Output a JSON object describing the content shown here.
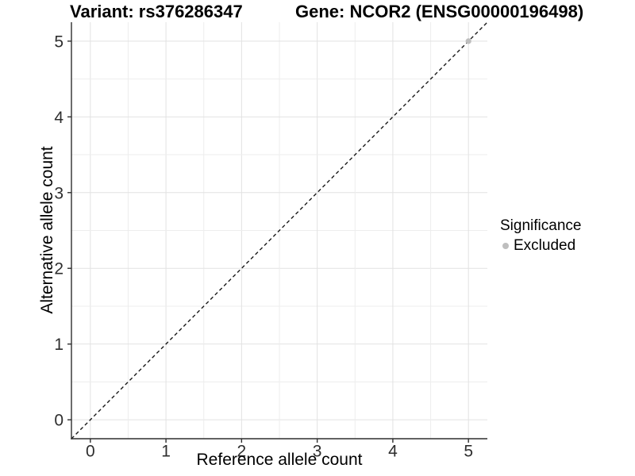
{
  "header": {
    "variant_title": "Variant: rs376286347",
    "gene_title": "Gene: NCOR2 (ENSG00000196498)"
  },
  "chart_data": {
    "type": "scatter",
    "xlabel": "Reference allele count",
    "ylabel": "Alternative allele count",
    "xlim": [
      -0.25,
      5.25
    ],
    "ylim": [
      -0.25,
      5.25
    ],
    "xticks": [
      0,
      1,
      2,
      3,
      4,
      5
    ],
    "yticks": [
      0,
      1,
      2,
      3,
      4,
      5
    ],
    "grid": {
      "show": true,
      "step": 0.5,
      "major_color": "#e2e2e2",
      "minor_color": "#ededed"
    },
    "reference_line": {
      "type": "abline",
      "slope": 1,
      "intercept": 0,
      "style": "dashed",
      "color": "#1a1a1a"
    },
    "series": [
      {
        "name": "Excluded",
        "color": "#bebebe",
        "points": [
          {
            "x": 5,
            "y": 5
          }
        ]
      }
    ],
    "legend": {
      "title": "Significance",
      "position": "right",
      "items": [
        {
          "label": "Excluded",
          "color": "#bebebe",
          "marker": "circle"
        }
      ]
    }
  },
  "colors": {
    "background": "#ffffff",
    "axis_line": "#2e2e2e",
    "tick_text": "#2e2e2e"
  }
}
